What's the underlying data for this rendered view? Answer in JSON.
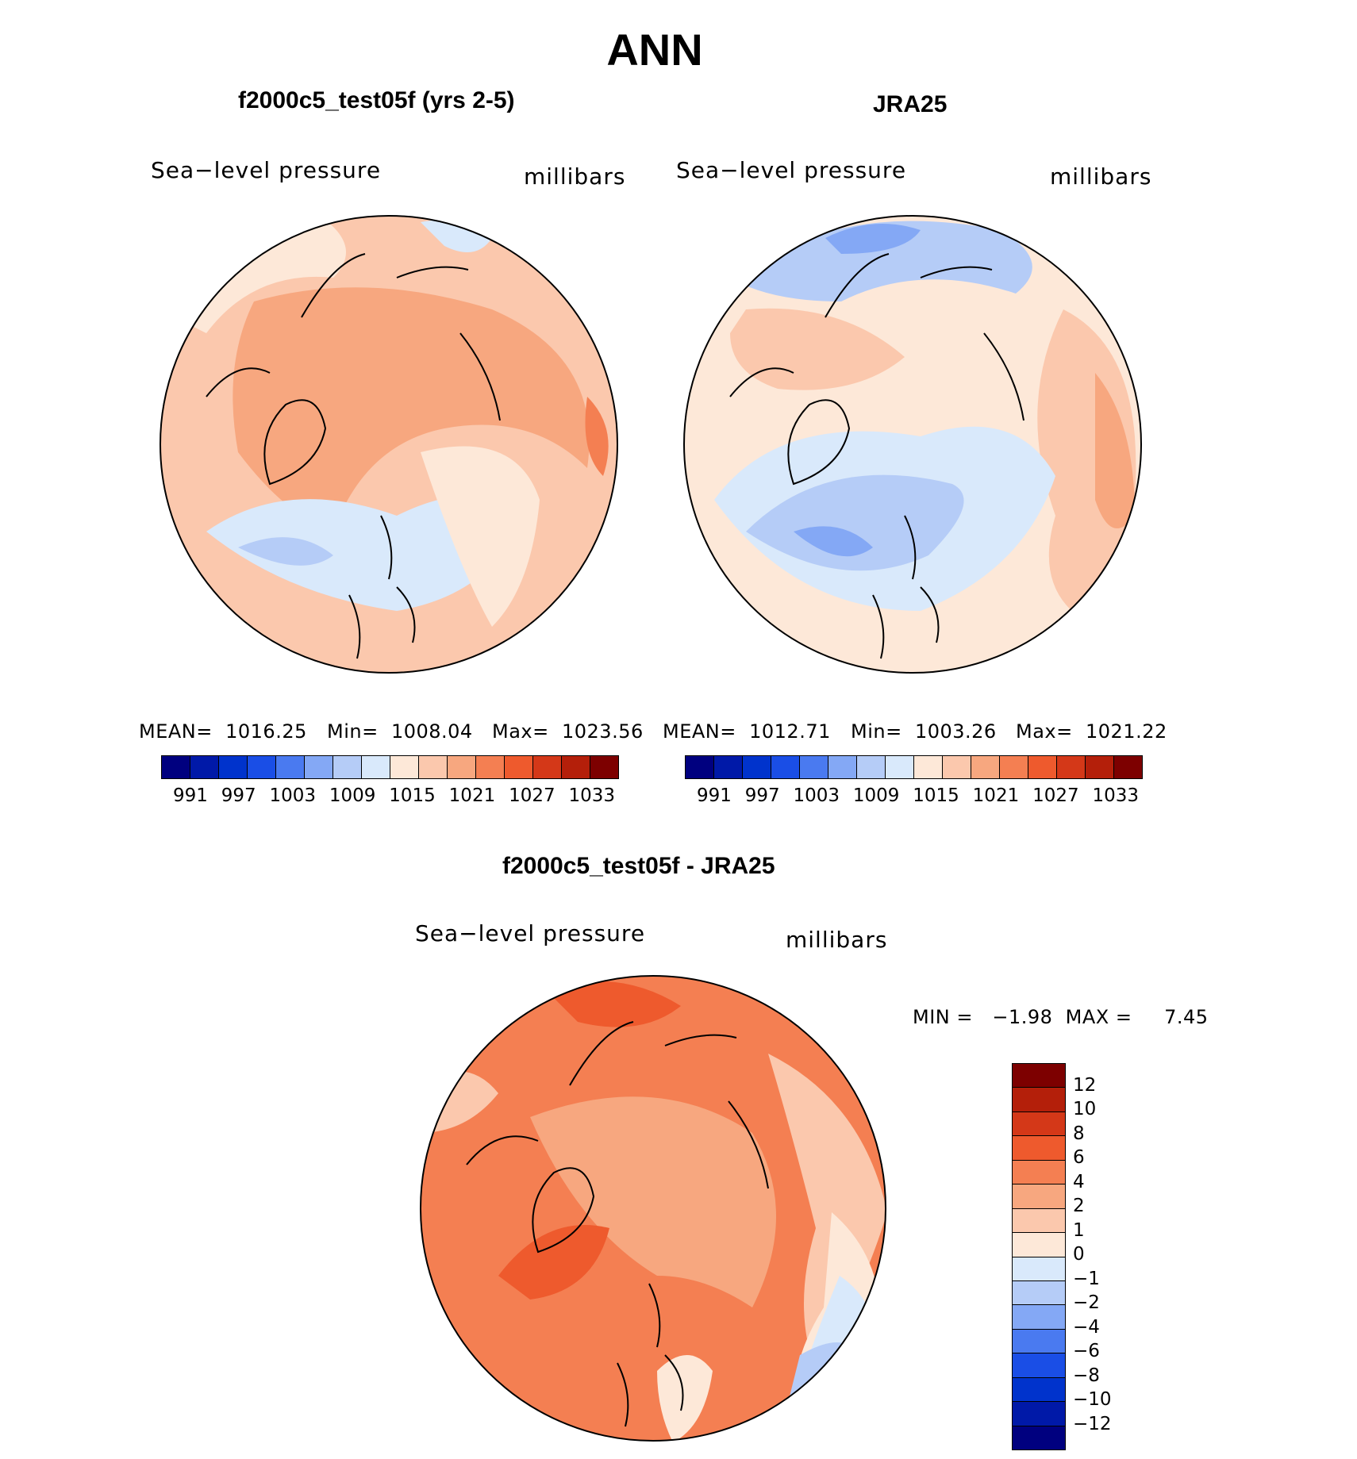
{
  "main_title": "ANN",
  "diff_title": "f2000c5_test05f - JRA25",
  "panels": [
    {
      "title": "f2000c5_test05f (yrs 2-5)",
      "variable": "Sea−level pressure",
      "units": "millibars",
      "mean": "MEAN=  1016.25",
      "min": "Min=  1008.04",
      "max": "Max=  1023.56"
    },
    {
      "title": "JRA25",
      "variable": "Sea−level pressure",
      "units": "millibars",
      "mean": "MEAN=  1012.71",
      "min": "Min=  1003.26",
      "max": "Max=  1021.22"
    }
  ],
  "diff_panel": {
    "variable": "Sea−level pressure",
    "units": "millibars",
    "minmax": "MIN =   −1.98  MAX =     7.45"
  },
  "colorbar_abs": {
    "colors": [
      "#00007f",
      "#0019a8",
      "#0033cc",
      "#1a4ee6",
      "#4a7af0",
      "#84a8f5",
      "#b5ccf7",
      "#d9e9fb",
      "#fde8d8",
      "#fbc8ad",
      "#f7a77f",
      "#f47f52",
      "#ee5a2d",
      "#d43818",
      "#b41f0a",
      "#7d0000"
    ],
    "ticks": [
      "991",
      "997",
      "1003",
      "1009",
      "1015",
      "1021",
      "1027",
      "1033"
    ]
  },
  "colorbar_diff": {
    "colors": [
      "#7d0000",
      "#b41f0a",
      "#d43818",
      "#ee5a2d",
      "#f47f52",
      "#f7a77f",
      "#fbc8ad",
      "#fde8d8",
      "#d9e9fb",
      "#b5ccf7",
      "#84a8f5",
      "#4a7af0",
      "#1a4ee6",
      "#0033cc",
      "#0019a8",
      "#00007f"
    ],
    "ticks": [
      "12",
      "10",
      "8",
      "6",
      "4",
      "2",
      "1",
      "0",
      "−1",
      "−2",
      "−4",
      "−6",
      "−8",
      "−10",
      "−12"
    ]
  }
}
